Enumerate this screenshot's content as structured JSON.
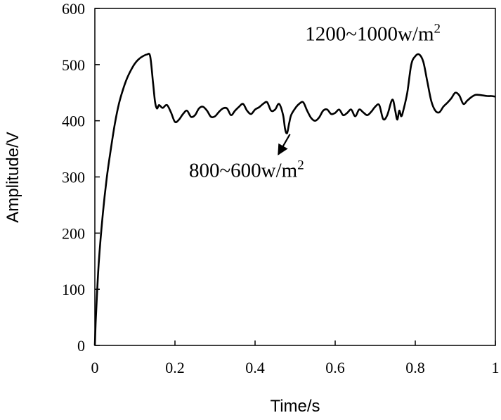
{
  "chart_data": {
    "type": "line",
    "title": "",
    "xlabel": "Time/s",
    "ylabel": "Amplitude/V",
    "xlim": [
      0,
      1
    ],
    "ylim": [
      0,
      600
    ],
    "xticks": [
      0,
      0.2,
      0.4,
      0.6,
      0.8,
      1
    ],
    "xtick_labels": [
      "0",
      "0.2",
      "0.4",
      "0.6",
      "0.8",
      "1"
    ],
    "yticks": [
      0,
      100,
      200,
      300,
      400,
      500,
      600
    ],
    "ytick_labels": [
      "0",
      "100",
      "200",
      "300",
      "400",
      "500",
      "600"
    ],
    "grid": false,
    "series": [
      {
        "name": "Amplitude",
        "x": [
          0,
          0.002,
          0.005,
          0.01,
          0.02,
          0.03,
          0.04,
          0.05,
          0.06,
          0.07,
          0.08,
          0.09,
          0.1,
          0.11,
          0.12,
          0.13,
          0.138,
          0.145,
          0.15,
          0.155,
          0.16,
          0.165,
          0.17,
          0.18,
          0.19,
          0.2,
          0.21,
          0.22,
          0.23,
          0.24,
          0.25,
          0.26,
          0.27,
          0.28,
          0.29,
          0.3,
          0.31,
          0.32,
          0.33,
          0.34,
          0.35,
          0.36,
          0.37,
          0.38,
          0.39,
          0.4,
          0.41,
          0.42,
          0.43,
          0.44,
          0.45,
          0.46,
          0.47,
          0.475,
          0.48,
          0.485,
          0.49,
          0.5,
          0.51,
          0.52,
          0.53,
          0.54,
          0.55,
          0.56,
          0.57,
          0.58,
          0.59,
          0.6,
          0.61,
          0.62,
          0.63,
          0.64,
          0.65,
          0.66,
          0.67,
          0.68,
          0.69,
          0.7,
          0.71,
          0.72,
          0.73,
          0.74,
          0.745,
          0.75,
          0.755,
          0.76,
          0.765,
          0.77,
          0.78,
          0.79,
          0.8,
          0.81,
          0.82,
          0.83,
          0.84,
          0.85,
          0.86,
          0.87,
          0.88,
          0.89,
          0.9,
          0.91,
          0.92,
          0.93,
          0.94,
          0.95,
          0.96,
          0.97,
          0.98,
          0.99,
          1.0
        ],
        "y": [
          0,
          40,
          85,
          150,
          235,
          300,
          350,
          395,
          430,
          455,
          475,
          490,
          502,
          510,
          515,
          518,
          515,
          470,
          435,
          422,
          428,
          425,
          423,
          428,
          415,
          398,
          402,
          412,
          418,
          407,
          410,
          422,
          425,
          418,
          407,
          408,
          416,
          422,
          422,
          410,
          418,
          425,
          430,
          418,
          412,
          420,
          424,
          430,
          433,
          418,
          420,
          430,
          410,
          385,
          378,
          395,
          410,
          422,
          430,
          433,
          418,
          405,
          400,
          406,
          418,
          420,
          412,
          414,
          420,
          410,
          414,
          420,
          408,
          420,
          415,
          410,
          416,
          425,
          428,
          403,
          410,
          434,
          436,
          418,
          402,
          418,
          408,
          418,
          450,
          500,
          515,
          518,
          505,
          470,
          435,
          418,
          415,
          425,
          432,
          440,
          450,
          445,
          430,
          436,
          442,
          446,
          446,
          445,
          444,
          444,
          443
        ]
      }
    ],
    "annotations": [
      {
        "text": "1200~1000w/m",
        "superscript": "2",
        "x": 0.525,
        "y": 543
      },
      {
        "text": "800~600w/m",
        "superscript": "2",
        "x": 0.235,
        "y": 300
      }
    ],
    "arrow": {
      "from": [
        0.487,
        376
      ],
      "to": [
        0.458,
        340
      ]
    }
  }
}
